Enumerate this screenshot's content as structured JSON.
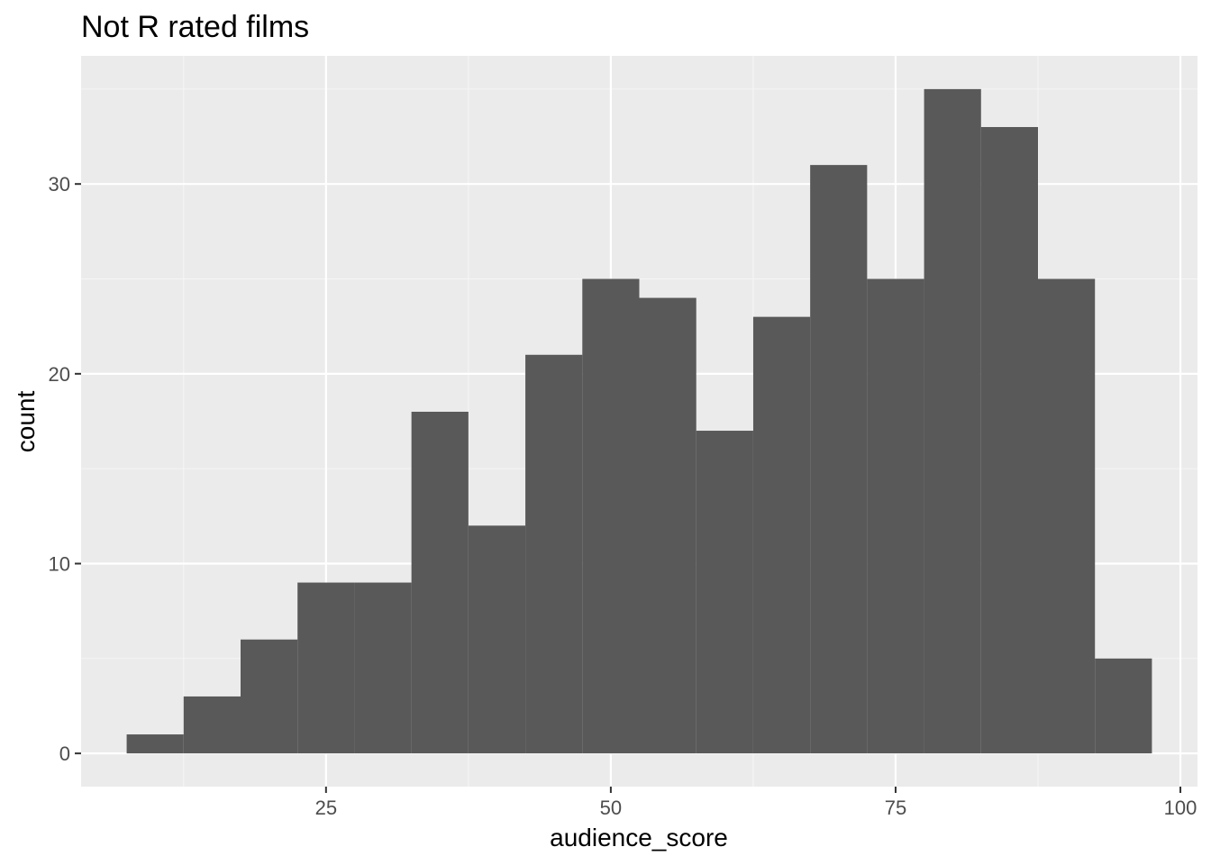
{
  "chart_data": {
    "type": "bar",
    "title": "Not R rated films",
    "xlabel": "audience_score",
    "ylabel": "count",
    "bin_width": 5,
    "bins": [
      {
        "center": 10,
        "count": 1
      },
      {
        "center": 15,
        "count": 3
      },
      {
        "center": 20,
        "count": 6
      },
      {
        "center": 25,
        "count": 9
      },
      {
        "center": 30,
        "count": 9
      },
      {
        "center": 35,
        "count": 18
      },
      {
        "center": 40,
        "count": 12
      },
      {
        "center": 45,
        "count": 21
      },
      {
        "center": 50,
        "count": 25
      },
      {
        "center": 55,
        "count": 24
      },
      {
        "center": 60,
        "count": 17
      },
      {
        "center": 65,
        "count": 23
      },
      {
        "center": 70,
        "count": 31
      },
      {
        "center": 75,
        "count": 25
      },
      {
        "center": 80,
        "count": 35
      },
      {
        "center": 85,
        "count": 33
      },
      {
        "center": 90,
        "count": 25
      },
      {
        "center": 95,
        "count": 5
      }
    ],
    "xlim": [
      3.5,
      101.5
    ],
    "ylim": [
      -1.75,
      36.75
    ],
    "x_ticks": [
      25,
      50,
      75,
      100
    ],
    "y_ticks": [
      0,
      10,
      20,
      30
    ],
    "grid": true,
    "legend": "none",
    "colors": {
      "panel_background": "#ebebeb",
      "grid_major": "#ffffff",
      "grid_minor": "#f5f5f5",
      "bar_fill": "#595959",
      "tick_text": "#4d4d4d"
    }
  }
}
